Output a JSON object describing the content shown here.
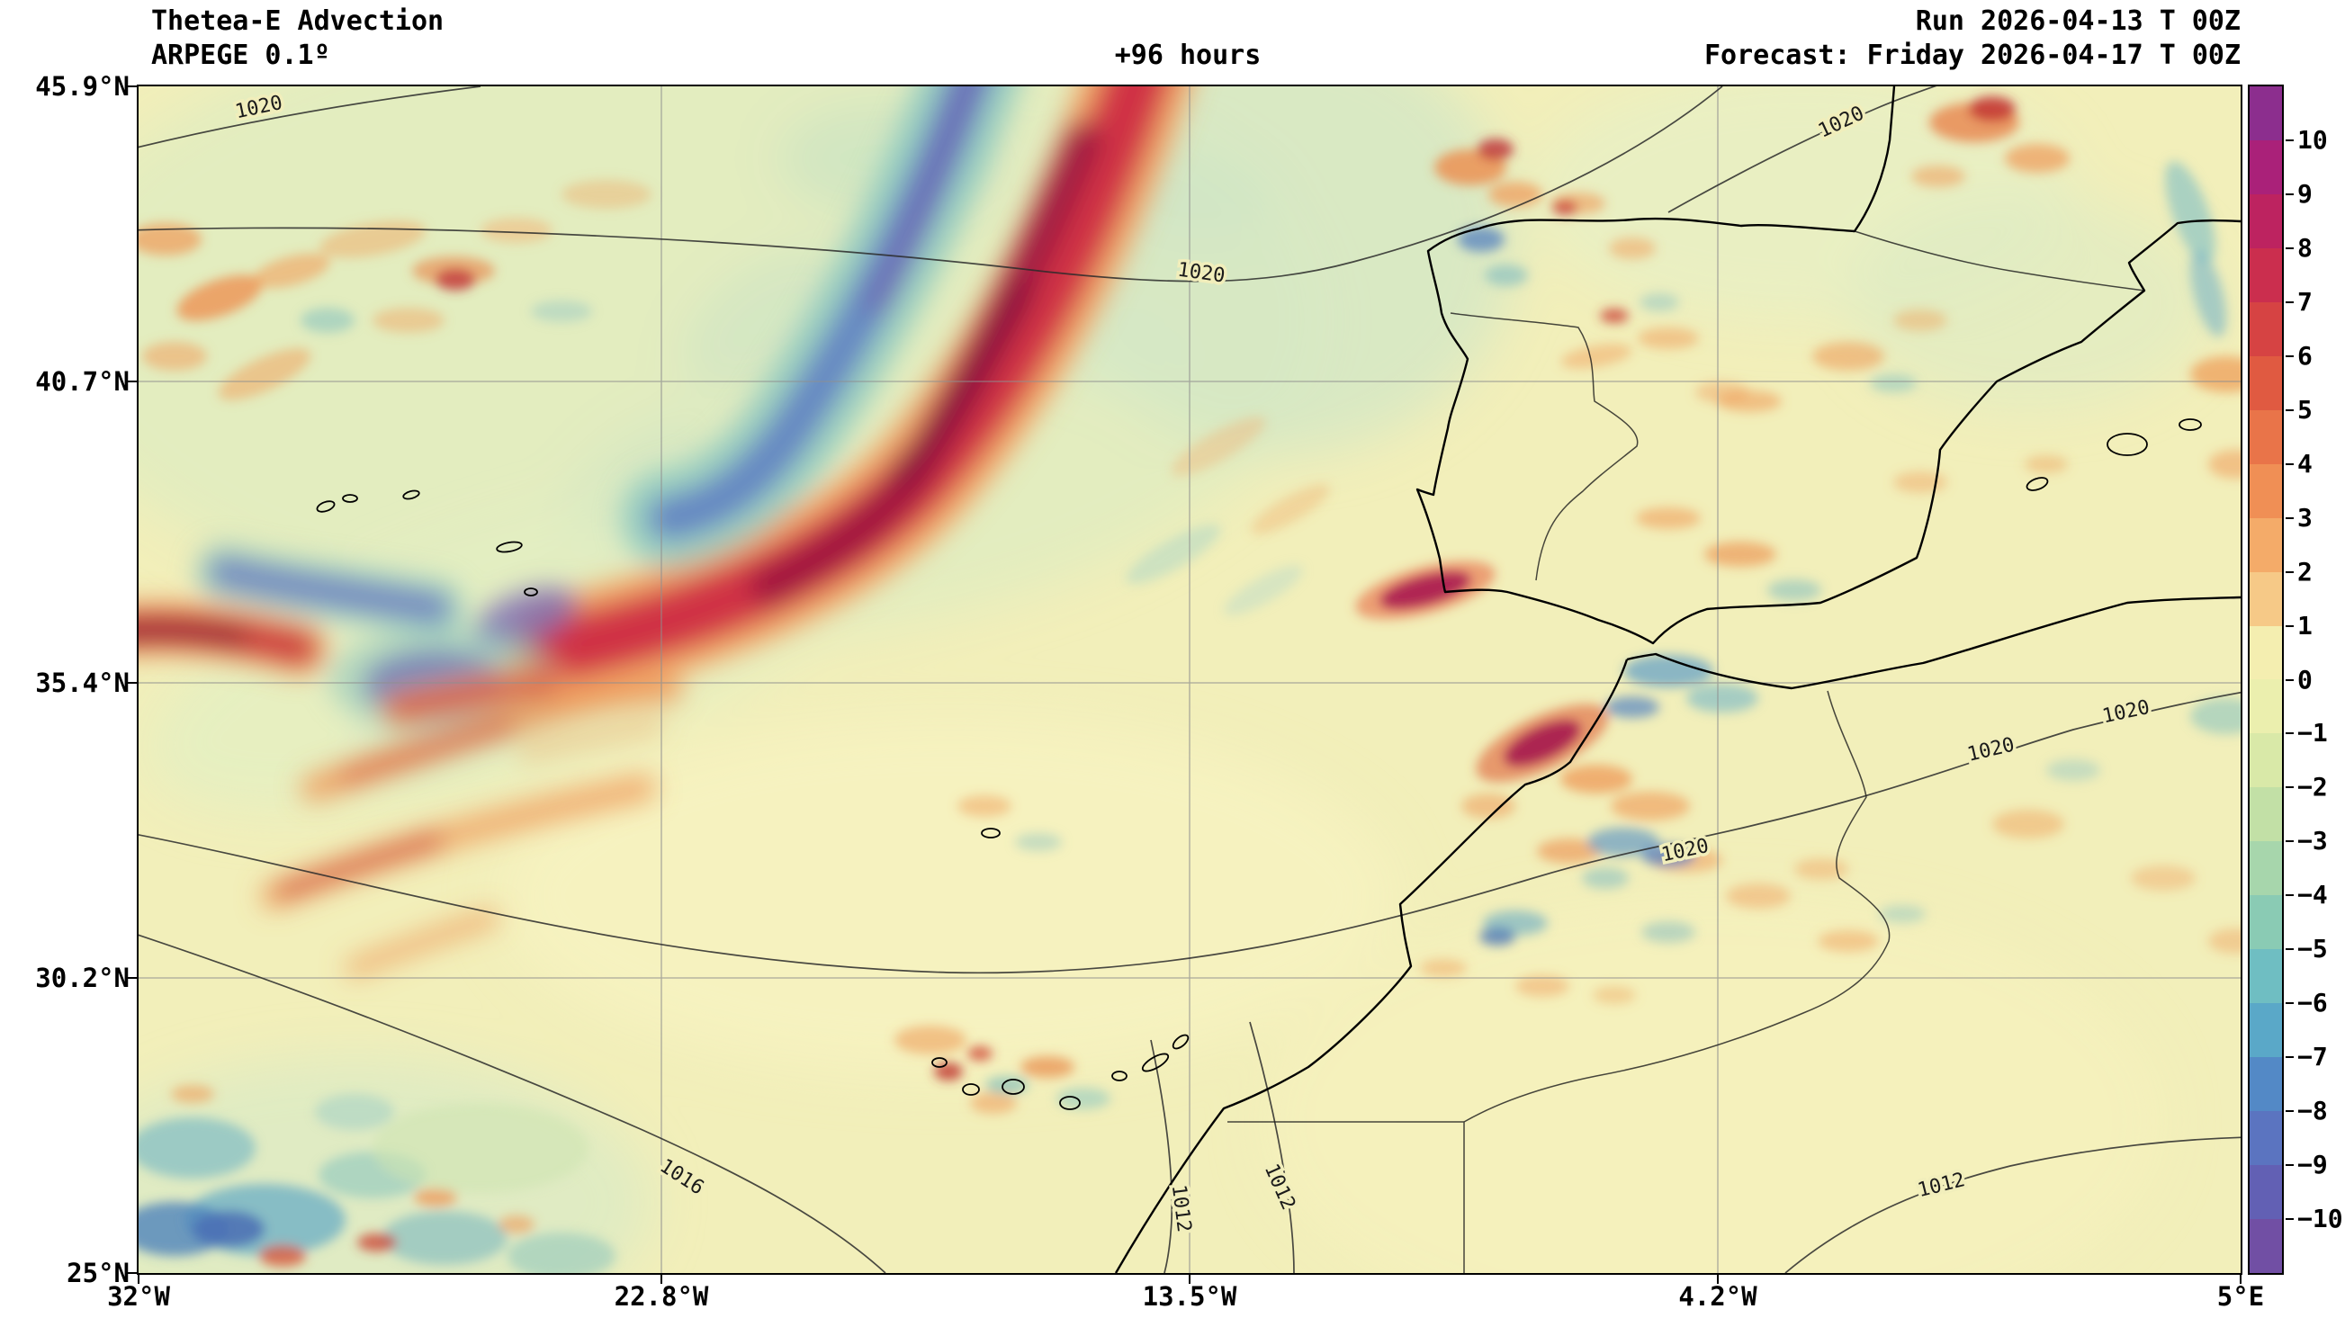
{
  "header": {
    "title_line1": "Thetea-E Advection",
    "title_line2": "ARPEGE 0.1º",
    "lead_time": "+96 hours",
    "run": "Run 2026-04-13 T 00Z",
    "forecast": "Forecast: Friday 2026-04-17 T 00Z"
  },
  "axes": {
    "lat_ticks": [
      "45.9°N",
      "40.7°N",
      "35.4°N",
      "30.2°N",
      "25°N"
    ],
    "lon_ticks": [
      "32°W",
      "22.8°W",
      "13.5°W",
      "4.2°W",
      "5°E"
    ]
  },
  "colorbar": {
    "ticks": [
      "10",
      "9",
      "8",
      "7",
      "6",
      "5",
      "4",
      "3",
      "2",
      "1",
      "0",
      "−1",
      "−2",
      "−3",
      "−4",
      "−5",
      "−6",
      "−7",
      "−8",
      "−9",
      "−10"
    ],
    "band_colors": [
      "#8c2e8e",
      "#aa2179",
      "#bd2360",
      "#cb2e4e",
      "#d64343",
      "#e05a41",
      "#e97449",
      "#f08f55",
      "#f4ab69",
      "#f6c987",
      "#f4eeb0",
      "#ebefae",
      "#d9e9a8",
      "#c2e0a6",
      "#a7d6ac",
      "#8acbb4",
      "#6fbec2",
      "#5aa8c8",
      "#5389c6",
      "#5b74c0",
      "#6260b4",
      "#714fa4"
    ]
  },
  "map": {
    "background_color": "#f2efba",
    "contour_labels": [
      "1020",
      "1020",
      "1020",
      "1020",
      "1020",
      "1020",
      "1016",
      "1012",
      "1012",
      "1012"
    ]
  }
}
